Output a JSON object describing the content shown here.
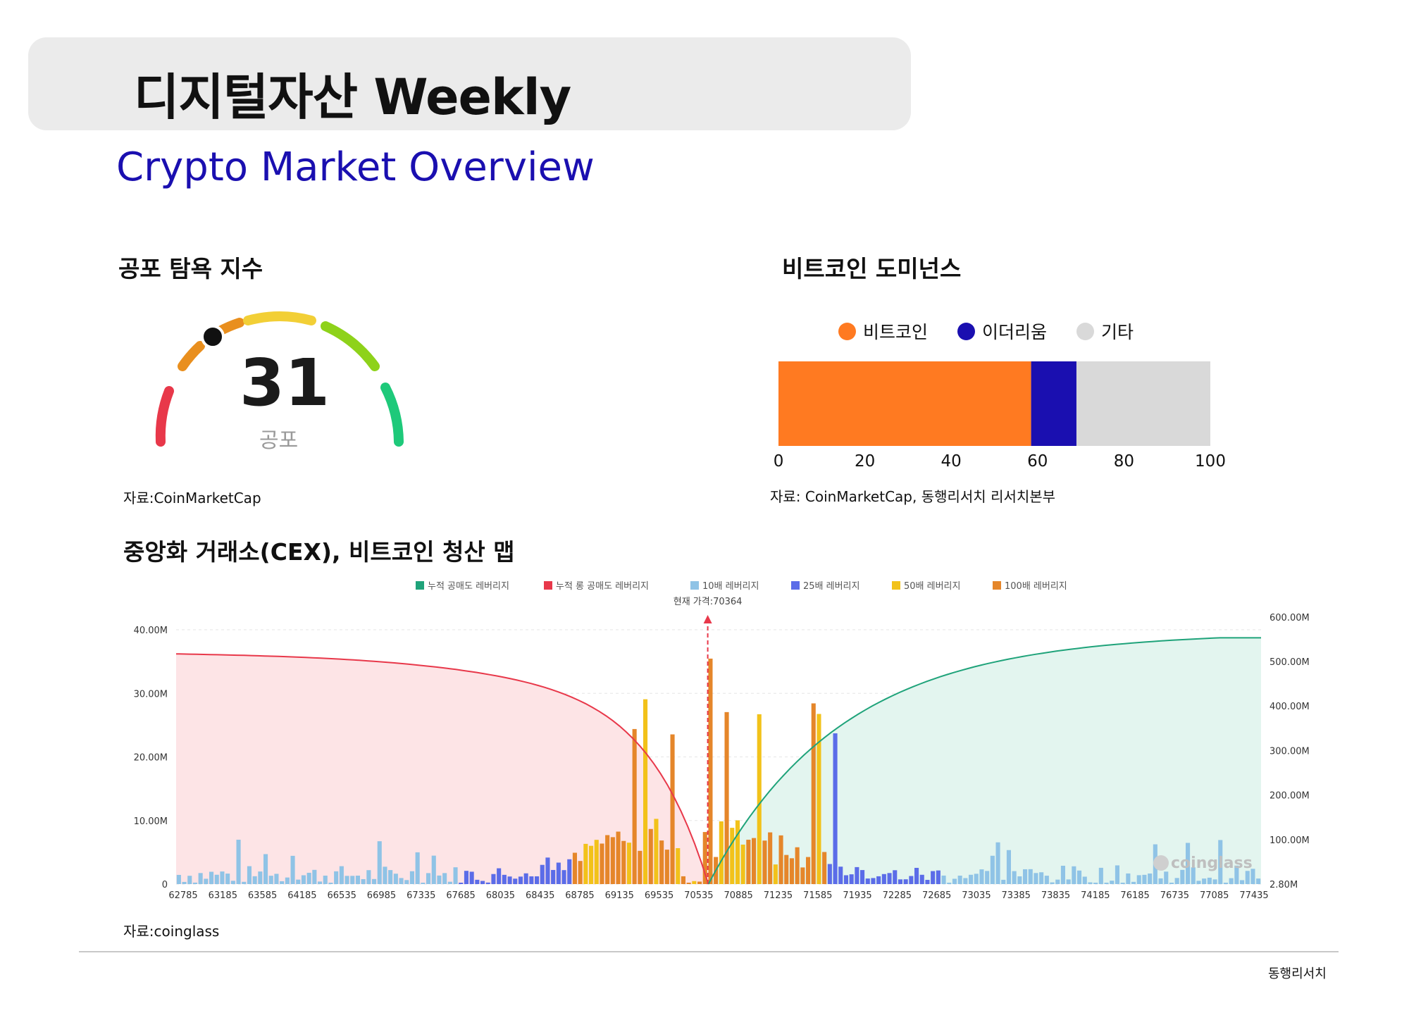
{
  "header": {
    "title": "디지털자산 Weekly",
    "subtitle": "Crypto Market Overview"
  },
  "fear_greed": {
    "section_title": "공포 탐욕 지수",
    "value": "31",
    "label": "공포",
    "source": "자료:CoinMarketCap",
    "colors": [
      "#e8384a",
      "#e98f1e",
      "#f2cf36",
      "#8ed21a",
      "#1ec97a"
    ]
  },
  "dominance": {
    "section_title": "비트코인 도미넌스",
    "source": "자료: CoinMarketCap, 동행리서치 리서치본부",
    "chart_data": {
      "type": "bar",
      "orientation": "horizontal-stacked",
      "series": [
        {
          "name": "비트코인",
          "values": [
            58.5
          ],
          "color": "#ff7a21"
        },
        {
          "name": "이더리움",
          "values": [
            10.5
          ],
          "color": "#1a0fb0"
        },
        {
          "name": "기타",
          "values": [
            31
          ],
          "color": "#d9d9d9"
        }
      ],
      "xlim": [
        0,
        100
      ],
      "ticks": [
        "0",
        "20",
        "40",
        "60",
        "80",
        "100"
      ],
      "legend": "top"
    }
  },
  "liquidation": {
    "section_title": "중앙화 거래소(CEX), 비트코인 청산 맵",
    "source": "자료:coinglass",
    "watermark": "coinglass",
    "current_price_label": "현재 가격:70364",
    "chart_data": {
      "type": "bar",
      "legend": [
        {
          "name": "누적 공매도 레버리지",
          "color": "#1fa37a"
        },
        {
          "name": "누적 롱 공매도 레버리지",
          "color": "#e8384a"
        },
        {
          "name": "10배 레버리지",
          "color": "#8fc3e6"
        },
        {
          "name": "25배 레버리지",
          "color": "#5b6ce8"
        },
        {
          "name": "50배 레버리지",
          "color": "#f2c21a"
        },
        {
          "name": "100배 레버리지",
          "color": "#e5862a"
        }
      ],
      "y_left_ticks": [
        "0",
        "10.00M",
        "20.00M",
        "30.00M",
        "40.00M"
      ],
      "y_right_ticks": [
        "2.80M",
        "100.00M",
        "200.00M",
        "300.00M",
        "400.00M",
        "500.00M",
        "600.00M"
      ],
      "x_ticks": [
        "62785",
        "63185",
        "63585",
        "64185",
        "66535",
        "66985",
        "67335",
        "67685",
        "68035",
        "68435",
        "68785",
        "69135",
        "69535",
        "70535",
        "70885",
        "71235",
        "71585",
        "71935",
        "72285",
        "72685",
        "73035",
        "73385",
        "73835",
        "74185",
        "76185",
        "76735",
        "77085",
        "77435"
      ],
      "ylim_left": [
        0,
        40
      ],
      "ylim_right": [
        2.8,
        600
      ],
      "current_price": 70364
    }
  },
  "footer": {
    "brand": "동행리서치"
  }
}
